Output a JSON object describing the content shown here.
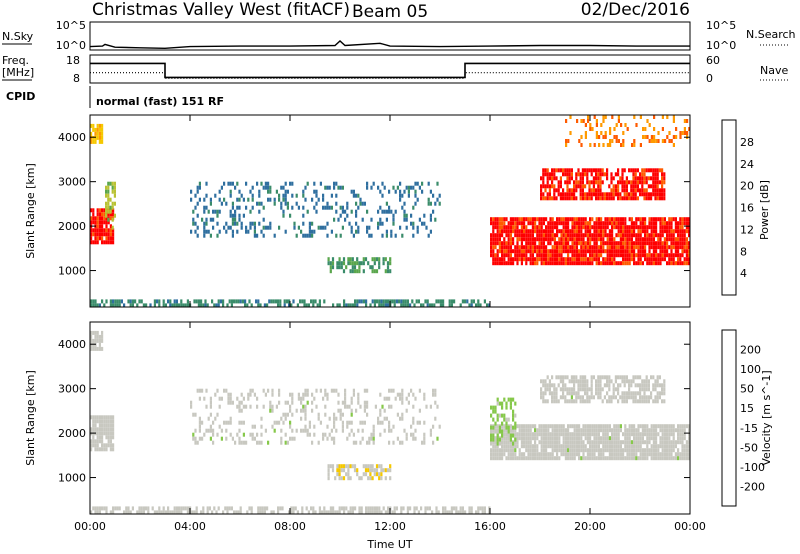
{
  "header": {
    "title": "Christmas Valley West (fitACF)",
    "beam": "Beam 05",
    "date": "02/Dec/2016"
  },
  "panel_labels": {
    "nsky": "N.Sky",
    "nsky_ticks": [
      "10^5",
      "10^0"
    ],
    "nsearch": "N.Search",
    "nsearch_ticks": [
      "10^5",
      "10^0"
    ],
    "freq": "Freq.",
    "freq_unit": "[MHz]",
    "freq_ticks": [
      "18",
      "8"
    ],
    "nave": "Nave",
    "nave_ticks": [
      "60",
      "0"
    ],
    "cpid": "CPID",
    "cpid_text": "normal (fast) 151 RF"
  },
  "colors": {
    "power_scale": [
      "#0000ff",
      "#1e3fa8",
      "#2f6f9f",
      "#3a8c6a",
      "#5aa64c",
      "#b9c234",
      "#f5c800",
      "#ff9a00",
      "#ff5a00",
      "#ff0000"
    ],
    "velocity_scale": [
      "#ff0000",
      "#ff5a00",
      "#ff9a00",
      "#f5c800",
      "#c8c8c0",
      "#c8c8c0",
      "#86c84a",
      "#3c9e3c",
      "#2f6f5f",
      "#2b4ea3",
      "#0000ff"
    ],
    "ground_scatter": "#c8c8c0"
  },
  "chart_data": [
    {
      "type": "line",
      "name": "N.Sky / N.Search",
      "x_unit": "hours UT",
      "x": [
        0,
        0.5,
        0.6,
        1.0,
        2.0,
        3.0,
        4.0,
        6.0,
        8.0,
        9.8,
        10.0,
        10.2,
        11.6,
        12.0,
        14.0,
        16.0,
        18.0,
        20.0,
        22.0,
        24.0
      ],
      "y_log10": [
        0.6,
        0.7,
        1.0,
        0.5,
        0.4,
        0.3,
        0.6,
        0.7,
        0.7,
        0.8,
        1.6,
        0.8,
        1.2,
        0.7,
        0.6,
        0.7,
        0.8,
        0.8,
        0.7,
        0.7
      ]
    },
    {
      "type": "line",
      "name": "Freq.",
      "ylabel": "Freq. [MHz]",
      "ylim": [
        8,
        18
      ],
      "x": [
        0,
        3.0,
        3.0,
        15.0,
        15.0,
        24.0
      ],
      "values": [
        15,
        15,
        10,
        10,
        15,
        15
      ]
    },
    {
      "type": "line",
      "name": "Nave",
      "ylim": [
        0,
        60
      ],
      "x": [
        0,
        3.0,
        3.0,
        15.0,
        15.0,
        24.0
      ],
      "values": [
        22,
        22,
        10,
        10,
        22,
        22
      ]
    },
    {
      "type": "heatmap",
      "title": "Power",
      "ylabel": "Slant Range [km]",
      "colorbar_label": "Power [dB]",
      "colorbar_ticks": [
        "28",
        "24",
        "20",
        "16",
        "12",
        "8",
        "4"
      ],
      "clim": [
        0,
        30
      ],
      "xlim": [
        0,
        24
      ],
      "ylim": [
        180,
        4500
      ],
      "x_ticks": [
        "00:00",
        "04:00",
        "08:00",
        "12:00",
        "16:00",
        "20:00",
        "00:00"
      ],
      "y_ticks": [
        "1000",
        "2000",
        "3000",
        "4000"
      ],
      "regions": [
        {
          "t": [
            0.0,
            0.9
          ],
          "r": [
            1600,
            2400
          ],
          "v": 28,
          "d": 0.9
        },
        {
          "t": [
            0.0,
            0.5
          ],
          "r": [
            3900,
            4300
          ],
          "v": 20,
          "d": 0.8
        },
        {
          "t": [
            0.6,
            1.0
          ],
          "r": [
            2000,
            3000
          ],
          "v": 16,
          "d": 0.5
        },
        {
          "t": [
            4.0,
            14.0
          ],
          "r": [
            1800,
            3000
          ],
          "v": 8,
          "d": 0.25
        },
        {
          "t": [
            9.5,
            12.0
          ],
          "r": [
            1000,
            1300
          ],
          "v": 12,
          "d": 0.5
        },
        {
          "t": [
            0.0,
            16.0
          ],
          "r": [
            180,
            350
          ],
          "v": 10,
          "d": 0.6
        },
        {
          "t": [
            16.0,
            24.0
          ],
          "r": [
            1200,
            2200
          ],
          "v": 28,
          "d": 0.9
        },
        {
          "t": [
            18.0,
            23.0
          ],
          "r": [
            2600,
            3300
          ],
          "v": 28,
          "d": 0.75
        },
        {
          "t": [
            19.0,
            24.0
          ],
          "r": [
            3800,
            4500
          ],
          "v": 24,
          "d": 0.25
        }
      ]
    },
    {
      "type": "heatmap",
      "title": "Velocity",
      "ylabel": "Slant Range [km]",
      "colorbar_label": "Velocity [m s^-1]",
      "colorbar_ticks": [
        "200",
        "100",
        "50",
        "15",
        "-15",
        "-50",
        "-100",
        "-200"
      ],
      "clim": [
        -250,
        250
      ],
      "xlim": [
        0,
        24
      ],
      "ylim": [
        180,
        4500
      ],
      "x_ticks": [
        "00:00",
        "04:00",
        "08:00",
        "12:00",
        "16:00",
        "20:00",
        "00:00"
      ],
      "xlabel": "Time UT",
      "y_ticks": [
        "1000",
        "2000",
        "3000",
        "4000"
      ],
      "regions": [
        {
          "t": [
            0.0,
            0.9
          ],
          "r": [
            1600,
            2400
          ],
          "v": 0,
          "d": 0.9
        },
        {
          "t": [
            0.0,
            0.5
          ],
          "r": [
            3900,
            4300
          ],
          "v": 0,
          "d": 0.8
        },
        {
          "t": [
            4.0,
            14.0
          ],
          "r": [
            1800,
            3000
          ],
          "v": 10,
          "d": 0.25
        },
        {
          "t": [
            9.5,
            12.0
          ],
          "r": [
            1000,
            1300
          ],
          "v": -50,
          "d": 0.7
        },
        {
          "t": [
            0.0,
            16.0
          ],
          "r": [
            180,
            350
          ],
          "v": -30,
          "d": 0.6
        },
        {
          "t": [
            16.0,
            24.0
          ],
          "r": [
            1400,
            2200
          ],
          "v": 0,
          "d": 0.9
        },
        {
          "t": [
            18.0,
            23.0
          ],
          "r": [
            2700,
            3300
          ],
          "v": 0,
          "d": 0.7
        },
        {
          "t": [
            16.0,
            17.0
          ],
          "r": [
            1800,
            2800
          ],
          "v": 40,
          "d": 0.5
        }
      ]
    }
  ]
}
